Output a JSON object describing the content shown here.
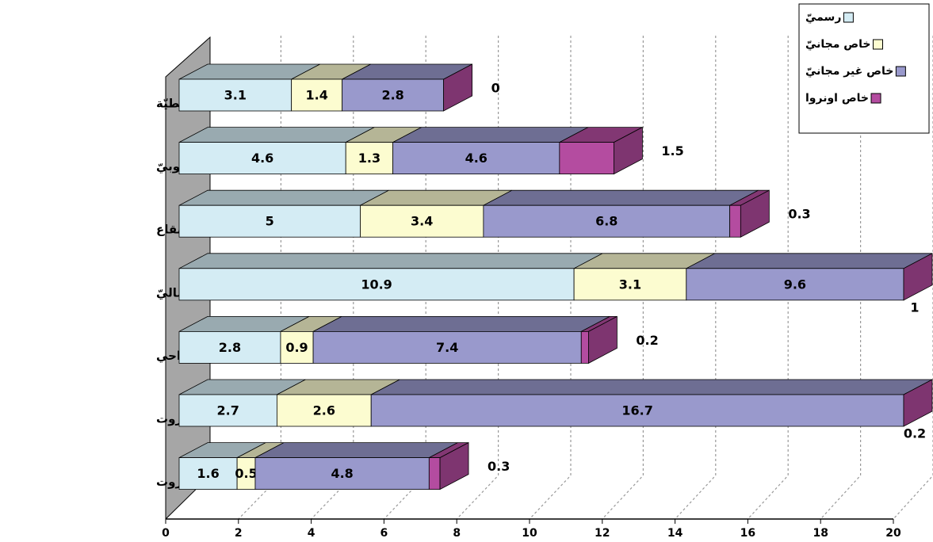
{
  "chart_data": {
    "type": "bar3d_stacked_horizontal",
    "categories": [
      "النبطيّة",
      "لبنان الجنوبيّ",
      "البقاع",
      "لبنان الشماليّ",
      "جبل لبنان ما عدا الضواحي",
      "جبل لبنان ضواحي بيروت",
      "بيروت"
    ],
    "series": [
      {
        "name": "رسميّ",
        "color": "#d4ecf4",
        "values": [
          3.1,
          4.6,
          5,
          10.9,
          2.8,
          2.7,
          1.6
        ]
      },
      {
        "name": "خاص مجانيّ",
        "color": "#fcfcd0",
        "values": [
          1.4,
          1.3,
          3.4,
          3.1,
          0.9,
          2.6,
          0.5
        ]
      },
      {
        "name": "خاص غير مجانيّ",
        "color": "#9999cc",
        "values": [
          2.8,
          4.6,
          6.8,
          9.6,
          7.4,
          16.7,
          4.8
        ]
      },
      {
        "name": "خاص اونروا",
        "color": "#b44ca0",
        "values": [
          0,
          1.5,
          0.3,
          1,
          0.2,
          0.2,
          0.3
        ]
      }
    ],
    "xlim": [
      0,
      20
    ],
    "xticks": [
      0,
      2,
      4,
      6,
      8,
      10,
      12,
      14,
      16,
      18,
      20
    ],
    "grid": true,
    "legend": "top-right"
  }
}
